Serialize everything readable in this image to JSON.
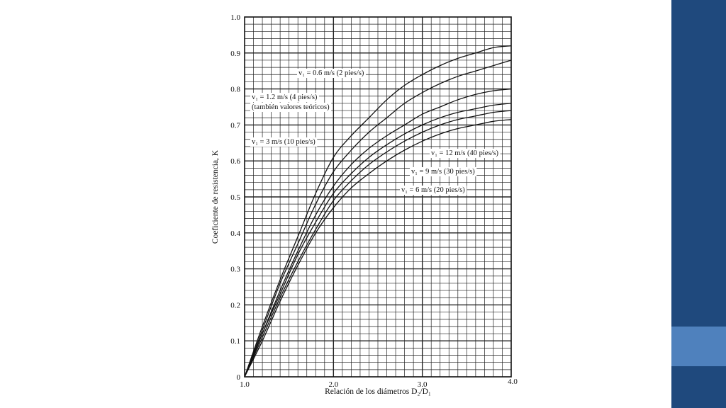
{
  "slide": {
    "accent_colors": {
      "panel": "#1f497d",
      "accent": "#4f81bd"
    }
  },
  "chart_data": {
    "type": "line",
    "title": "",
    "xlabel": "Relación de los diámetros D₂/D₁",
    "ylabel": "Coeficiente de resistencia, K",
    "xlim": [
      1.0,
      4.0
    ],
    "ylim": [
      0,
      1.0
    ],
    "x_ticks": [
      "1.0",
      "2.0",
      "3.0",
      "4.0"
    ],
    "y_ticks": [
      "0",
      "0.1",
      "0.2",
      "0.3",
      "0.4",
      "0.5",
      "0.6",
      "0.7",
      "0.8",
      "0.9",
      "1.0"
    ],
    "grid": true,
    "x": [
      1.0,
      1.2,
      1.4,
      1.6,
      1.8,
      2.0,
      2.2,
      2.4,
      2.6,
      2.8,
      3.0,
      3.2,
      3.4,
      3.6,
      3.8,
      4.0
    ],
    "series": [
      {
        "name": "v₁ = 0.6 m/s (2 pies/s)",
        "values": [
          0.0,
          0.14,
          0.27,
          0.39,
          0.51,
          0.61,
          0.67,
          0.72,
          0.77,
          0.81,
          0.84,
          0.865,
          0.885,
          0.9,
          0.915,
          0.92
        ]
      },
      {
        "name": "v₁ = 1.2 m/s (4 pies/s) (también valores teóricos)",
        "values": [
          0.0,
          0.13,
          0.26,
          0.37,
          0.48,
          0.57,
          0.63,
          0.68,
          0.72,
          0.76,
          0.79,
          0.815,
          0.835,
          0.85,
          0.865,
          0.88
        ]
      },
      {
        "name": "v₁ = 3 m/s (10 pies/s)",
        "values": [
          0.0,
          0.12,
          0.24,
          0.35,
          0.45,
          0.53,
          0.59,
          0.635,
          0.67,
          0.7,
          0.73,
          0.75,
          0.77,
          0.785,
          0.795,
          0.8
        ]
      },
      {
        "name": "v₁ = 12 m/s (40 pies/s)",
        "values": [
          0.0,
          0.12,
          0.23,
          0.34,
          0.43,
          0.51,
          0.565,
          0.61,
          0.645,
          0.675,
          0.7,
          0.72,
          0.735,
          0.745,
          0.755,
          0.76
        ]
      },
      {
        "name": "v₁ = 9 m/s (30 pies/s)",
        "values": [
          0.0,
          0.11,
          0.22,
          0.32,
          0.41,
          0.49,
          0.545,
          0.59,
          0.625,
          0.655,
          0.68,
          0.7,
          0.715,
          0.725,
          0.735,
          0.74
        ]
      },
      {
        "name": "v₁ = 6 m/s (20 pies/s)",
        "values": [
          0.0,
          0.1,
          0.21,
          0.31,
          0.4,
          0.47,
          0.525,
          0.565,
          0.6,
          0.63,
          0.655,
          0.675,
          0.69,
          0.7,
          0.71,
          0.715
        ]
      }
    ],
    "annotations": [
      "v₁ = 0.6 m/s (2 pies/s)",
      "v₁ = 1.2 m/s (4 pies/s)",
      "(también valores teóricos)",
      "v₁ = 3 m/s (10 pies/s)",
      "v₁ = 12 m/s (40 pies/s)",
      "v₁ = 9 m/s (30 pies/s)",
      "v₁ = 6 m/s (20 pies/s)"
    ]
  }
}
